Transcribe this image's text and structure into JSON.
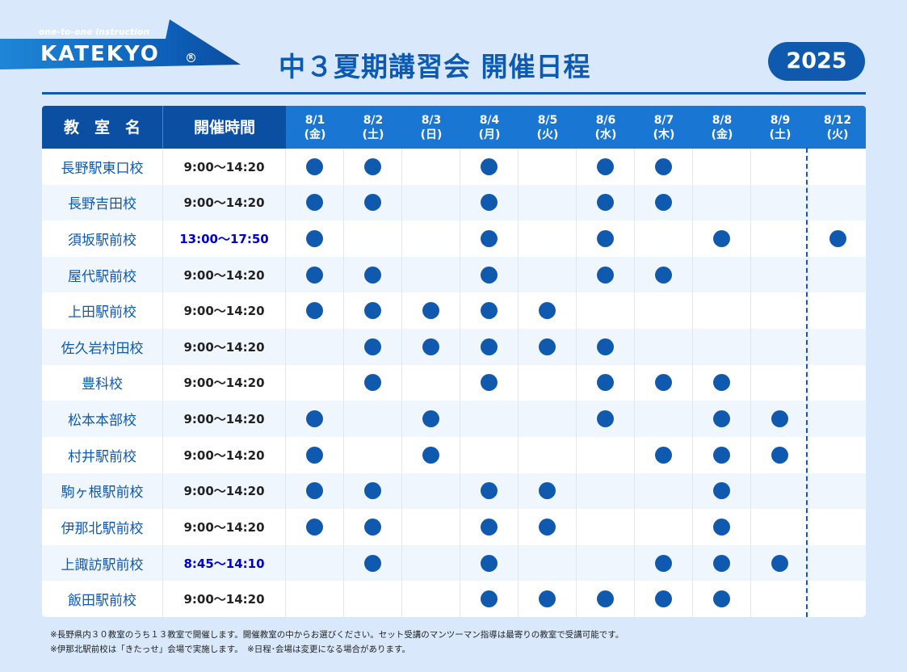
{
  "brand": {
    "tagline": "one-to-one instruction",
    "wordmark": "KATEKYO",
    "registered": "R",
    "colors": {
      "primary": "#0f5aaf",
      "header": "#1976d2",
      "background": "#d9e9fb"
    }
  },
  "title": "中３夏期講習会 開催日程",
  "year": "2025",
  "table": {
    "header": {
      "school": "教　室　名",
      "time": "開催時間",
      "dates": [
        {
          "date": "8/1",
          "day": "(金)"
        },
        {
          "date": "8/2",
          "day": "(土)"
        },
        {
          "date": "8/3",
          "day": "(日)"
        },
        {
          "date": "8/4",
          "day": "(月)"
        },
        {
          "date": "8/5",
          "day": "(火)"
        },
        {
          "date": "8/6",
          "day": "(水)"
        },
        {
          "date": "8/7",
          "day": "(木)"
        },
        {
          "date": "8/8",
          "day": "(金)"
        },
        {
          "date": "8/9",
          "day": "(土)"
        },
        {
          "date": "8/12",
          "day": "(火)"
        }
      ]
    },
    "rows": [
      {
        "name": "長野駅東口校",
        "time": "9:00〜14:20",
        "time_highlight": false,
        "days": [
          1,
          1,
          0,
          1,
          0,
          1,
          1,
          0,
          0,
          0
        ]
      },
      {
        "name": "長野吉田校",
        "time": "9:00〜14:20",
        "time_highlight": false,
        "days": [
          1,
          1,
          0,
          1,
          0,
          1,
          1,
          0,
          0,
          0
        ]
      },
      {
        "name": "須坂駅前校",
        "time": "13:00〜17:50",
        "time_highlight": true,
        "days": [
          1,
          0,
          0,
          1,
          0,
          1,
          0,
          1,
          0,
          1
        ]
      },
      {
        "name": "屋代駅前校",
        "time": "9:00〜14:20",
        "time_highlight": false,
        "days": [
          1,
          1,
          0,
          1,
          0,
          1,
          1,
          0,
          0,
          0
        ]
      },
      {
        "name": "上田駅前校",
        "time": "9:00〜14:20",
        "time_highlight": false,
        "days": [
          1,
          1,
          1,
          1,
          1,
          0,
          0,
          0,
          0,
          0
        ]
      },
      {
        "name": "佐久岩村田校",
        "time": "9:00〜14:20",
        "time_highlight": false,
        "days": [
          0,
          1,
          1,
          1,
          1,
          1,
          0,
          0,
          0,
          0
        ]
      },
      {
        "name": "豊科校",
        "time": "9:00〜14:20",
        "time_highlight": false,
        "days": [
          0,
          1,
          0,
          1,
          0,
          1,
          1,
          1,
          0,
          0
        ]
      },
      {
        "name": "松本本部校",
        "time": "9:00〜14:20",
        "time_highlight": false,
        "days": [
          1,
          0,
          1,
          0,
          0,
          1,
          0,
          1,
          1,
          0
        ]
      },
      {
        "name": "村井駅前校",
        "time": "9:00〜14:20",
        "time_highlight": false,
        "days": [
          1,
          0,
          1,
          0,
          0,
          0,
          1,
          1,
          1,
          0
        ]
      },
      {
        "name": "駒ヶ根駅前校",
        "time": "9:00〜14:20",
        "time_highlight": false,
        "days": [
          1,
          1,
          0,
          1,
          1,
          0,
          0,
          1,
          0,
          0
        ]
      },
      {
        "name": "伊那北駅前校",
        "time": "9:00〜14:20",
        "time_highlight": false,
        "days": [
          1,
          1,
          0,
          1,
          1,
          0,
          0,
          1,
          0,
          0
        ]
      },
      {
        "name": "上諏訪駅前校",
        "time": "8:45〜14:10",
        "time_highlight": true,
        "days": [
          0,
          1,
          0,
          1,
          0,
          0,
          1,
          1,
          1,
          0
        ]
      },
      {
        "name": "飯田駅前校",
        "time": "9:00〜14:20",
        "time_highlight": false,
        "days": [
          0,
          0,
          0,
          1,
          1,
          1,
          1,
          1,
          0,
          0
        ]
      }
    ]
  },
  "notes": [
    "※長野県内３０教室のうち１３教室で開催します。開催教室の中からお選びください。セット受講のマンツーマン指導は最寄りの教室で受講可能です。",
    "※伊那北駅前校は「きたっせ」会場で実施します。　※日程･会場は変更になる場合があります。"
  ]
}
